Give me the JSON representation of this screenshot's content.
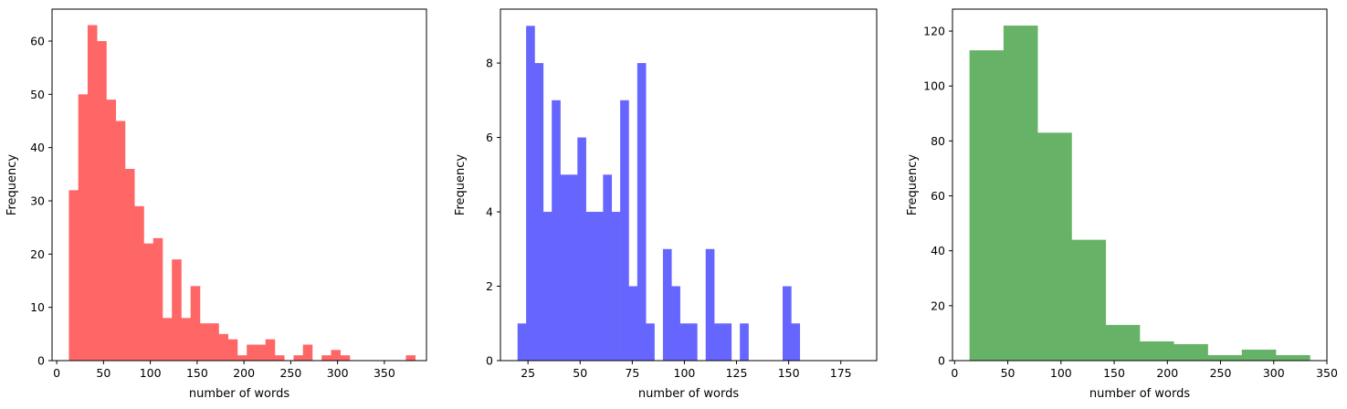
{
  "chart_data": [
    {
      "type": "bar",
      "color": "#ff6666",
      "xlabel": "number of words",
      "ylabel": "Frequency",
      "xlim": [
        -5,
        395
      ],
      "ylim": [
        0,
        66
      ],
      "xticks": [
        0,
        50,
        100,
        150,
        200,
        250,
        300,
        350
      ],
      "yticks": [
        0,
        10,
        20,
        30,
        40,
        50,
        60
      ],
      "grid": false,
      "bin_start": 13,
      "bin_width": 10,
      "values": [
        32,
        50,
        63,
        60,
        49,
        45,
        36,
        29,
        22,
        23,
        8,
        19,
        8,
        14,
        7,
        7,
        5,
        4,
        1,
        3,
        3,
        4,
        1,
        0,
        1,
        3,
        0,
        1,
        2,
        1,
        0,
        0,
        0,
        0,
        0,
        0,
        1
      ]
    },
    {
      "type": "bar",
      "color": "#6666ff",
      "xlabel": "number of words",
      "ylabel": "Frequency",
      "xlim": [
        11.8,
        192.2
      ],
      "ylim": [
        0,
        9.45
      ],
      "xticks": [
        25,
        50,
        75,
        100,
        125,
        150,
        175
      ],
      "yticks": [
        0,
        2,
        4,
        6,
        8
      ],
      "grid": false,
      "bin_start": 20,
      "bin_width": 4.1,
      "values": [
        1,
        9,
        8,
        4,
        7,
        5,
        5,
        6,
        4,
        4,
        5,
        4,
        7,
        2,
        8,
        1,
        0,
        3,
        2,
        1,
        1,
        0,
        3,
        1,
        1,
        0,
        1,
        0,
        0,
        0,
        0,
        2,
        1
      ]
    },
    {
      "type": "bar",
      "color": "#66b266",
      "xlabel": "number of words",
      "ylabel": "Frequency",
      "xlim": [
        -2,
        350
      ],
      "ylim": [
        0,
        128
      ],
      "xticks": [
        0,
        50,
        100,
        150,
        200,
        250,
        300,
        350
      ],
      "yticks": [
        0,
        20,
        40,
        60,
        80,
        100,
        120
      ],
      "grid": false,
      "bin_start": 14,
      "bin_width": 32,
      "values": [
        113,
        122,
        83,
        44,
        13,
        7,
        6,
        2,
        4,
        2
      ]
    }
  ]
}
